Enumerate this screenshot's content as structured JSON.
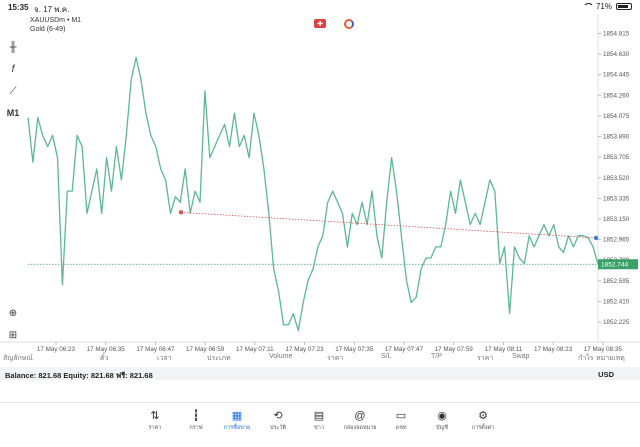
{
  "status_bar": {
    "time": "15:35",
    "date": "จ. 17 พ.ค.",
    "battery": "71%"
  },
  "chart": {
    "symbol": "XAUUSDm • M1",
    "subtitle": "Gold (6-49)",
    "timeframe": "M1",
    "current_price_label": "1852.744"
  },
  "chart_data": {
    "type": "line",
    "price_ticks": [
      "1854.815",
      "1854.630",
      "1854.445",
      "1854.260",
      "1854.075",
      "1853.890",
      "1853.705",
      "1853.520",
      "1853.335",
      "1853.150",
      "1852.965",
      "1852.780",
      "1852.595",
      "1852.410",
      "1852.225"
    ],
    "time_ticks": [
      "17 May 06:23",
      "17 May 06:35",
      "17 May 06:47",
      "17 May 06:59",
      "17 May 07:11",
      "17 May 07:23",
      "17 May 07:35",
      "17 May 07:47",
      "17 May 07:59",
      "17 May 08:11",
      "17 May 08:23",
      "17 May 08:35"
    ],
    "ylim": [
      1852.1,
      1854.9
    ],
    "series": [
      {
        "values": [
          1854.06,
          1853.66,
          1854.06,
          1853.9,
          1853.8,
          1853.9,
          1853.7,
          1852.56,
          1853.4,
          1853.4,
          1853.9,
          1853.8,
          1853.2,
          1853.4,
          1853.6,
          1853.2,
          1853.7,
          1853.4,
          1853.8,
          1853.5,
          1853.9,
          1854.4,
          1854.6,
          1854.4,
          1854.1,
          1853.9,
          1853.8,
          1853.6,
          1853.5,
          1853.2,
          1853.35,
          1853.3,
          1853.6,
          1853.2,
          1853.4,
          1853.3,
          1854.3,
          1853.7,
          1853.8,
          1853.9,
          1854.0,
          1853.8,
          1854.1,
          1853.8,
          1853.9,
          1853.7,
          1854.1,
          1853.9,
          1853.6,
          1853.2,
          1852.7,
          1852.5,
          1852.2,
          1852.2,
          1852.3,
          1852.15,
          1852.4,
          1852.6,
          1852.7,
          1852.9,
          1853.0,
          1853.3,
          1853.4,
          1853.3,
          1853.2,
          1852.9,
          1853.2,
          1853.1,
          1853.3,
          1853.1,
          1853.4,
          1853.0,
          1852.8,
          1853.3,
          1853.7,
          1853.4,
          1853.0,
          1852.6,
          1852.4,
          1852.45,
          1852.7,
          1852.8,
          1852.8,
          1852.9,
          1852.9,
          1853.1,
          1853.4,
          1853.2,
          1853.5,
          1853.3,
          1853.1,
          1853.2,
          1853.1,
          1853.3,
          1853.5,
          1853.4,
          1852.75,
          1852.9,
          1852.3,
          1852.9,
          1852.8,
          1852.75,
          1853.0,
          1852.9,
          1853.0,
          1853.1,
          1853.0,
          1853.1,
          1852.9,
          1852.85,
          1853.0,
          1852.9,
          1853.0,
          1853.0,
          1852.98,
          1852.9,
          1852.744
        ]
      }
    ],
    "trendline": {
      "start": 1853.21,
      "end": 1852.98
    },
    "current_price": 1852.744,
    "colors": {
      "line": "#5cb891",
      "trend": "#e05050",
      "price_line": "#3aa06a",
      "price_badge": "#3aa06a"
    }
  },
  "table_headers": [
    "สัญลักษณ์",
    "ตั๋ว",
    "เวลา",
    "ประเภท",
    "Volume",
    "ราคา",
    "S/L",
    "T/P",
    "ราคา",
    "Swap",
    "กำไร"
  ],
  "table_headers_right": "หมายเหตุ",
  "balance": {
    "text": "Balance: 821.68 Equity: 821.68 ฟรี: 821.68",
    "currency": "USD"
  },
  "nav": [
    {
      "label": "ราคา",
      "icon": "arrows-updown-icon",
      "glyph": "⇅"
    },
    {
      "label": "กราฟ",
      "icon": "candles-icon",
      "glyph": "┇"
    },
    {
      "label": "การซื้อขาย",
      "icon": "trade-chart-icon",
      "glyph": "▦",
      "active": true
    },
    {
      "label": "ประวัติ",
      "icon": "history-icon",
      "glyph": "⟲"
    },
    {
      "label": "ข่าว",
      "icon": "news-icon",
      "glyph": "▤"
    },
    {
      "label": "กล่องจดหมาย",
      "icon": "at-icon",
      "glyph": "@"
    },
    {
      "label": "แชท",
      "icon": "chat-icon",
      "glyph": "▭"
    },
    {
      "label": "บัญชี",
      "icon": "account-icon",
      "glyph": "◉"
    },
    {
      "label": "การตั้งค่า",
      "icon": "gear-icon",
      "glyph": "⚙"
    }
  ]
}
